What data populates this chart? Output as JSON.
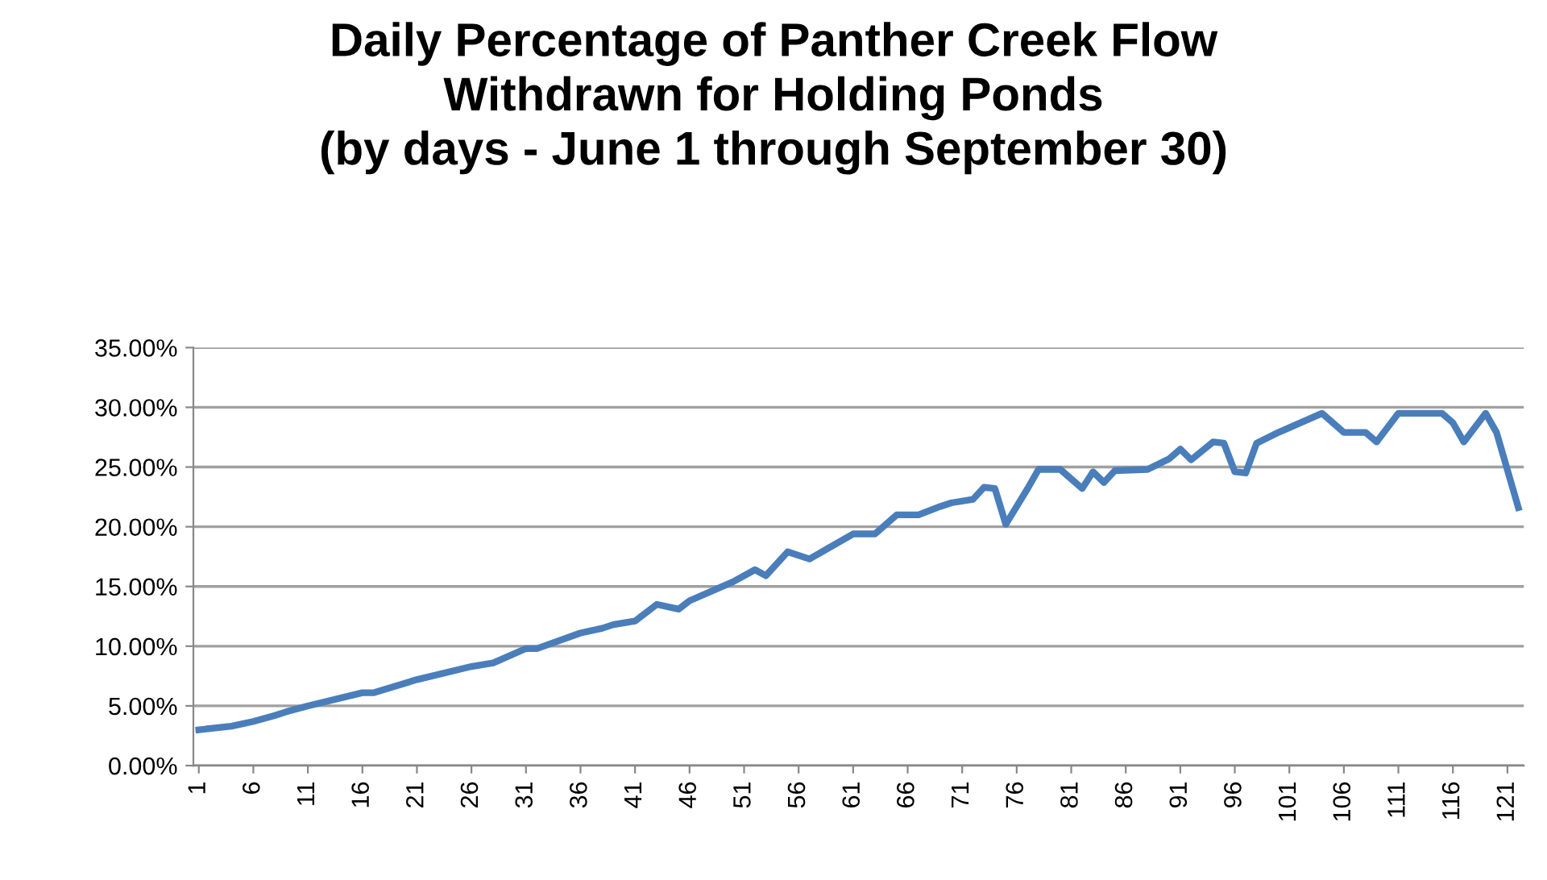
{
  "chart_data": {
    "type": "line",
    "title": "Daily Percentage of Panther Creek Flow\nWithdrawn for Holding Ponds\n(by days - June 1 through September 30)",
    "series": [
      {
        "color": "#4a7ebb",
        "x": [
          1,
          4,
          6,
          8,
          9,
          11,
          16,
          17,
          21,
          26,
          28,
          31,
          32,
          36,
          38,
          39,
          41,
          43,
          45,
          46,
          50,
          52,
          53,
          55,
          57,
          61,
          63,
          65,
          67,
          69,
          70,
          72,
          73,
          74,
          75,
          77,
          78,
          80,
          82,
          83,
          84,
          85,
          88,
          90,
          91,
          92,
          94,
          95,
          96,
          97,
          98,
          100,
          104,
          106,
          108,
          109,
          111,
          115,
          116,
          117,
          119,
          120,
          122
        ],
        "values": [
          3.0,
          3.3,
          3.7,
          4.2,
          4.5,
          5.0,
          6.1,
          6.1,
          7.2,
          8.3,
          8.6,
          9.8,
          9.8,
          11.1,
          11.5,
          11.8,
          12.1,
          13.5,
          13.1,
          13.8,
          15.4,
          16.4,
          15.9,
          17.9,
          17.3,
          19.4,
          19.4,
          21.0,
          21.0,
          21.7,
          22.0,
          22.3,
          23.3,
          23.2,
          20.2,
          23.2,
          24.8,
          24.8,
          23.2,
          24.6,
          23.7,
          24.7,
          24.8,
          25.7,
          26.5,
          25.6,
          27.1,
          27.0,
          24.6,
          24.5,
          27.0,
          27.9,
          29.5,
          27.9,
          27.9,
          27.1,
          29.5,
          29.5,
          28.7,
          27.1,
          29.5,
          27.9,
          21.6
        ]
      }
    ],
    "xlim": [
      0.5,
      122.5
    ],
    "xticks": [
      1,
      6,
      11,
      16,
      21,
      26,
      31,
      36,
      41,
      46,
      51,
      56,
      61,
      66,
      71,
      76,
      81,
      86,
      91,
      96,
      101,
      106,
      111,
      116,
      121
    ],
    "ylim": [
      0,
      35
    ],
    "yticks": [
      {
        "value": 0,
        "label": "0.00%"
      },
      {
        "value": 5,
        "label": "5.00%"
      },
      {
        "value": 10,
        "label": "10.00%"
      },
      {
        "value": 15,
        "label": "15.00%"
      },
      {
        "value": 20,
        "label": "20.00%"
      },
      {
        "value": 25,
        "label": "25.00%"
      },
      {
        "value": 30,
        "label": "30.00%"
      },
      {
        "value": 35,
        "label": "35.00%"
      }
    ],
    "grid": "y",
    "marker": "none",
    "line_style": "solid"
  }
}
